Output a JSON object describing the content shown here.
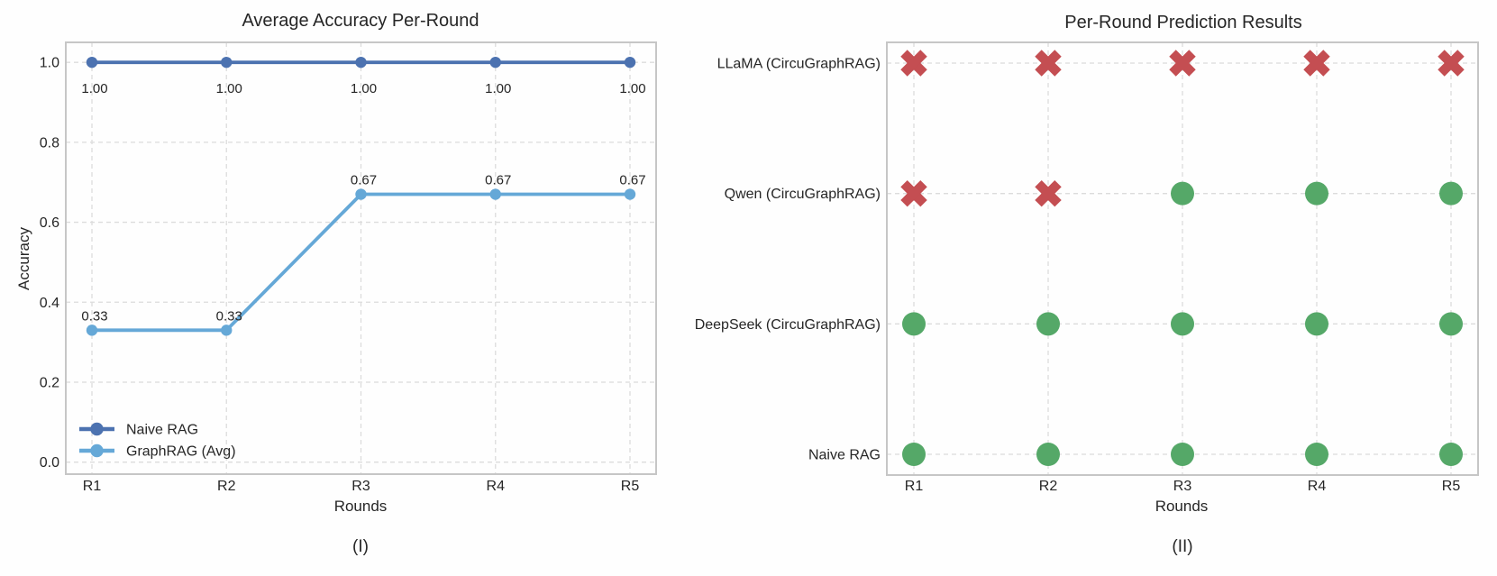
{
  "figure": {
    "panel_captions": {
      "left": "(I)",
      "right": "(II)"
    }
  },
  "chart_data": [
    {
      "type": "line",
      "title": "Average Accuracy Per-Round",
      "xlabel": "Rounds",
      "ylabel": "Accuracy",
      "caption": "(I)",
      "categories": [
        "R1",
        "R2",
        "R3",
        "R4",
        "R5"
      ],
      "yticks": [
        0.0,
        0.2,
        0.4,
        0.6,
        0.8,
        1.0
      ],
      "ytick_labels": [
        "0.0",
        "0.2",
        "0.4",
        "0.6",
        "0.8",
        "1.0"
      ],
      "ylim": [
        -0.03,
        1.05
      ],
      "grid": true,
      "legend_position": "lower-left",
      "series": [
        {
          "name": "Naive RAG",
          "color": "#4C72B0",
          "values": [
            1.0,
            1.0,
            1.0,
            1.0,
            1.0
          ],
          "point_labels": [
            "1.00",
            "1.00",
            "1.00",
            "1.00",
            "1.00"
          ],
          "label_placement": "below"
        },
        {
          "name": "GraphRAG (Avg)",
          "color": "#65A8D7",
          "values": [
            0.33,
            0.33,
            0.67,
            0.67,
            0.67
          ],
          "point_labels": [
            "0.33",
            "0.33",
            "0.67",
            "0.67",
            "0.67"
          ],
          "label_placement": "above"
        }
      ]
    },
    {
      "type": "scatter",
      "title": "Per-Round Prediction Results",
      "xlabel": "Rounds",
      "caption": "(II)",
      "categories": [
        "R1",
        "R2",
        "R3",
        "R4",
        "R5"
      ],
      "rows": [
        {
          "name": "LLaMA (CircuGraphRAG)",
          "results": [
            "wrong",
            "wrong",
            "wrong",
            "wrong",
            "wrong"
          ]
        },
        {
          "name": "Qwen (CircuGraphRAG)",
          "results": [
            "wrong",
            "wrong",
            "correct",
            "correct",
            "correct"
          ]
        },
        {
          "name": "DeepSeek (CircuGraphRAG)",
          "results": [
            "correct",
            "correct",
            "correct",
            "correct",
            "correct"
          ]
        },
        {
          "name": "Naive RAG",
          "results": [
            "correct",
            "correct",
            "correct",
            "correct",
            "correct"
          ]
        }
      ],
      "markers": {
        "correct": {
          "shape": "circle",
          "color": "#55A868"
        },
        "wrong": {
          "shape": "x",
          "color": "#C44E52"
        }
      },
      "grid": true
    }
  ]
}
